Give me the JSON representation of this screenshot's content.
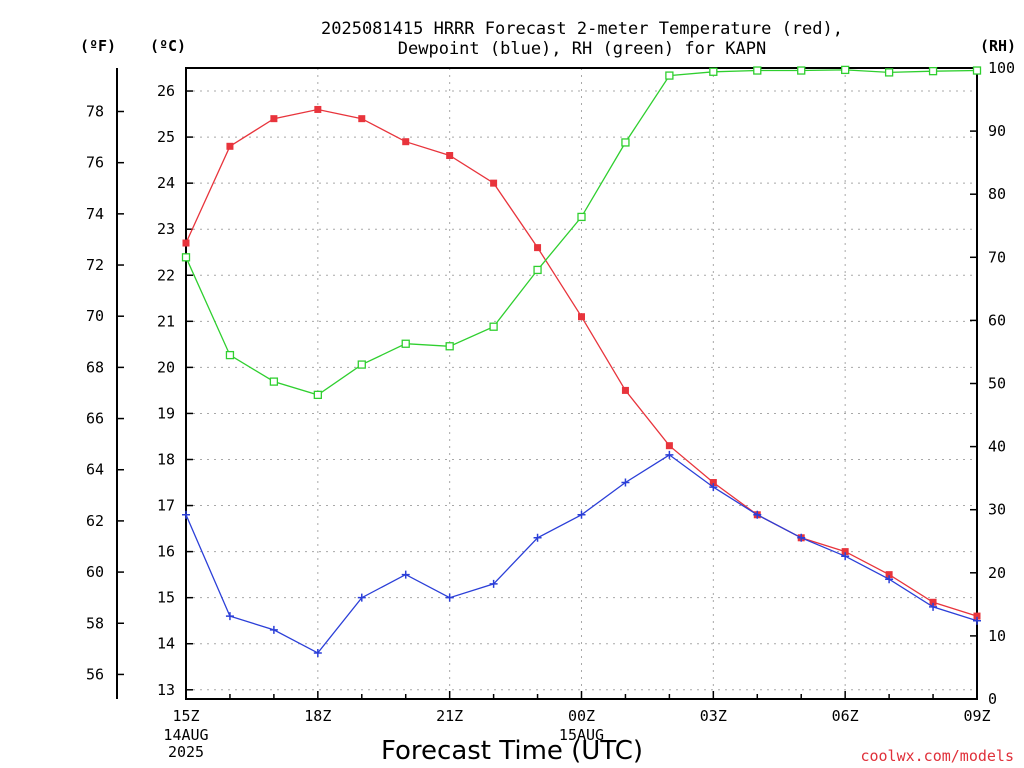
{
  "chart_data": {
    "type": "line",
    "title_lines": [
      "2025081415 HRRR Forecast 2-meter Temperature (red),",
      "Dewpoint (blue), RH (green) for KAPN"
    ],
    "xlabel": "Forecast Time (UTC)",
    "credit": "coolwx.com/models",
    "left_units": {
      "fahrenheit": "(ºF)",
      "celsius": "(ºC)"
    },
    "right_unit": "(RH)",
    "x_range_hours": [
      0,
      18
    ],
    "x_ticks": [
      {
        "h": 0,
        "label": "15Z",
        "sub": [
          "14AUG",
          "2025"
        ]
      },
      {
        "h": 3,
        "label": "18Z",
        "sub": []
      },
      {
        "h": 6,
        "label": "21Z",
        "sub": []
      },
      {
        "h": 9,
        "label": "00Z",
        "sub": [
          "15AUG"
        ]
      },
      {
        "h": 12,
        "label": "03Z",
        "sub": []
      },
      {
        "h": 15,
        "label": "06Z",
        "sub": []
      },
      {
        "h": 18,
        "label": "09Z",
        "sub": []
      }
    ],
    "celsius_range": [
      12.8,
      26.5
    ],
    "celsius_ticks": [
      13,
      14,
      15,
      16,
      17,
      18,
      19,
      20,
      21,
      22,
      23,
      24,
      25,
      26
    ],
    "fahrenheit_ticks": [
      56,
      58,
      60,
      62,
      64,
      66,
      68,
      70,
      72,
      74,
      76,
      78
    ],
    "rh_range": [
      0,
      100
    ],
    "rh_ticks": [
      0,
      10,
      20,
      30,
      40,
      50,
      60,
      70,
      80,
      90,
      100
    ],
    "series": [
      {
        "key": "temperature",
        "axis": "celsius",
        "color": "#e8343c",
        "marker": "filled-square",
        "values": [
          22.7,
          24.8,
          25.4,
          25.6,
          25.4,
          24.9,
          24.6,
          24.0,
          22.6,
          21.1,
          19.5,
          18.3,
          17.5,
          16.8,
          16.3,
          16.0,
          15.5,
          14.9,
          14.6
        ]
      },
      {
        "key": "dewpoint",
        "axis": "celsius",
        "color": "#2b3fd8",
        "marker": "plus",
        "values": [
          16.8,
          14.6,
          14.3,
          13.8,
          15.0,
          15.5,
          15.0,
          15.3,
          16.3,
          16.8,
          17.5,
          18.1,
          17.4,
          16.8,
          16.3,
          15.9,
          15.4,
          14.8,
          14.5
        ]
      },
      {
        "key": "rh",
        "axis": "rh",
        "color": "#2fcf2f",
        "marker": "hollow-square",
        "values": [
          70,
          54.5,
          50.3,
          48.2,
          53,
          56.3,
          55.9,
          59,
          68,
          76.4,
          88.2,
          98.8,
          99.4,
          99.6,
          99.6,
          99.7,
          99.3,
          99.5,
          99.6
        ]
      }
    ]
  }
}
